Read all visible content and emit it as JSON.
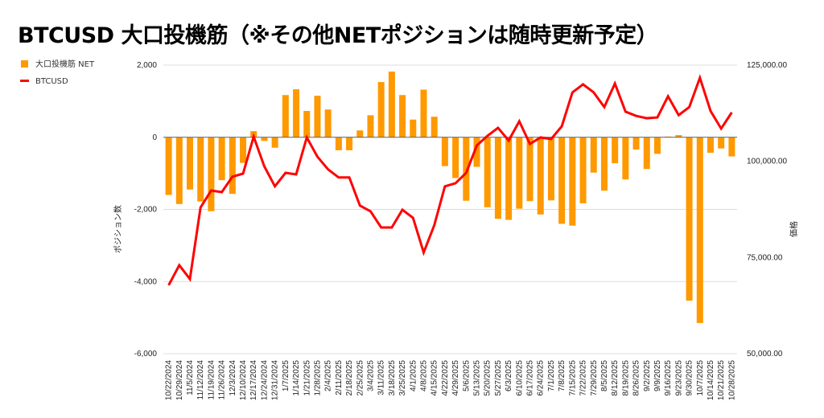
{
  "chart_data": {
    "type": "bar+line",
    "title": "BTCUSD 大口投機筋（※その他NETポジションは随時更新予定）",
    "left_ylabel": "ポジション数",
    "right_ylabel": "価格",
    "legend_position": "top-left",
    "grid": true,
    "left_ylim": [
      -6000,
      2000
    ],
    "left_ticks": [
      "2,000",
      "0",
      "-2,000",
      "-4,000",
      "-6,000"
    ],
    "left_tick_values": [
      2000,
      0,
      -2000,
      -4000,
      -6000
    ],
    "right_ylim": [
      50000,
      125000
    ],
    "right_ticks": [
      "125,000.00",
      "100,000.00",
      "75,000.00",
      "50,000.00"
    ],
    "right_tick_values": [
      125000,
      100000,
      75000,
      50000
    ],
    "categories": [
      "10/22/2024",
      "10/29/2024",
      "11/5/2024",
      "11/12/2024",
      "11/19/2024",
      "11/26/2024",
      "12/3/2024",
      "12/10/2024",
      "12/17/2024",
      "12/24/2024",
      "12/31/2024",
      "1/7/2025",
      "1/14/2025",
      "1/21/2025",
      "1/28/2025",
      "2/4/2025",
      "2/11/2025",
      "2/18/2025",
      "2/25/2025",
      "3/4/2025",
      "3/11/2025",
      "3/18/2025",
      "3/25/2025",
      "4/1/2025",
      "4/8/2025",
      "4/15/2025",
      "4/22/2025",
      "4/29/2025",
      "5/6/2025",
      "5/13/2025",
      "5/20/2025",
      "5/27/2025",
      "6/3/2025",
      "6/10/2025",
      "6/17/2025",
      "6/24/2025",
      "7/1/2025",
      "7/8/2025",
      "7/15/2025",
      "7/22/2025",
      "7/29/2025",
      "8/5/2025",
      "8/12/2025",
      "8/19/2025",
      "8/26/2025",
      "9/2/2025",
      "9/9/2025",
      "9/16/2025",
      "9/23/2025",
      "9/30/2025",
      "10/7/2025",
      "10/14/2025",
      "10/21/2025",
      "10/28/2025"
    ],
    "series": [
      {
        "name": "大口投機筋  NET",
        "type": "bar",
        "axis": "left",
        "color": "#ff9900",
        "values": [
          -1600,
          -1850,
          -1450,
          -1780,
          -2050,
          -1190,
          -1570,
          -710,
          170,
          -100,
          -290,
          1170,
          1330,
          730,
          1150,
          770,
          -360,
          -360,
          190,
          610,
          1530,
          1820,
          1170,
          490,
          1320,
          570,
          -800,
          -1130,
          -1760,
          -820,
          -1940,
          -2260,
          -2290,
          -1980,
          -1770,
          -2140,
          -1750,
          -2400,
          -2450,
          -1830,
          -980,
          -1480,
          -720,
          -1170,
          -340,
          -880,
          -460,
          20,
          60,
          -4530,
          -5150,
          -430,
          -310,
          -530
        ]
      },
      {
        "name": "BTCUSD",
        "type": "line",
        "axis": "right",
        "color": "#ff0000",
        "values": [
          67800,
          73000,
          69400,
          88000,
          92400,
          92000,
          96000,
          96800,
          106400,
          98700,
          93500,
          97000,
          96600,
          106200,
          101200,
          97900,
          95800,
          95800,
          88500,
          87000,
          82800,
          82800,
          87400,
          85300,
          76300,
          83400,
          93500,
          94300,
          97000,
          104100,
          106600,
          108700,
          105400,
          110400,
          104500,
          106200,
          105800,
          109100,
          117900,
          120000,
          117900,
          114100,
          120200,
          112900,
          111800,
          111200,
          111400,
          116900,
          112000,
          114100,
          121700,
          113100,
          108500,
          112700
        ]
      }
    ]
  }
}
